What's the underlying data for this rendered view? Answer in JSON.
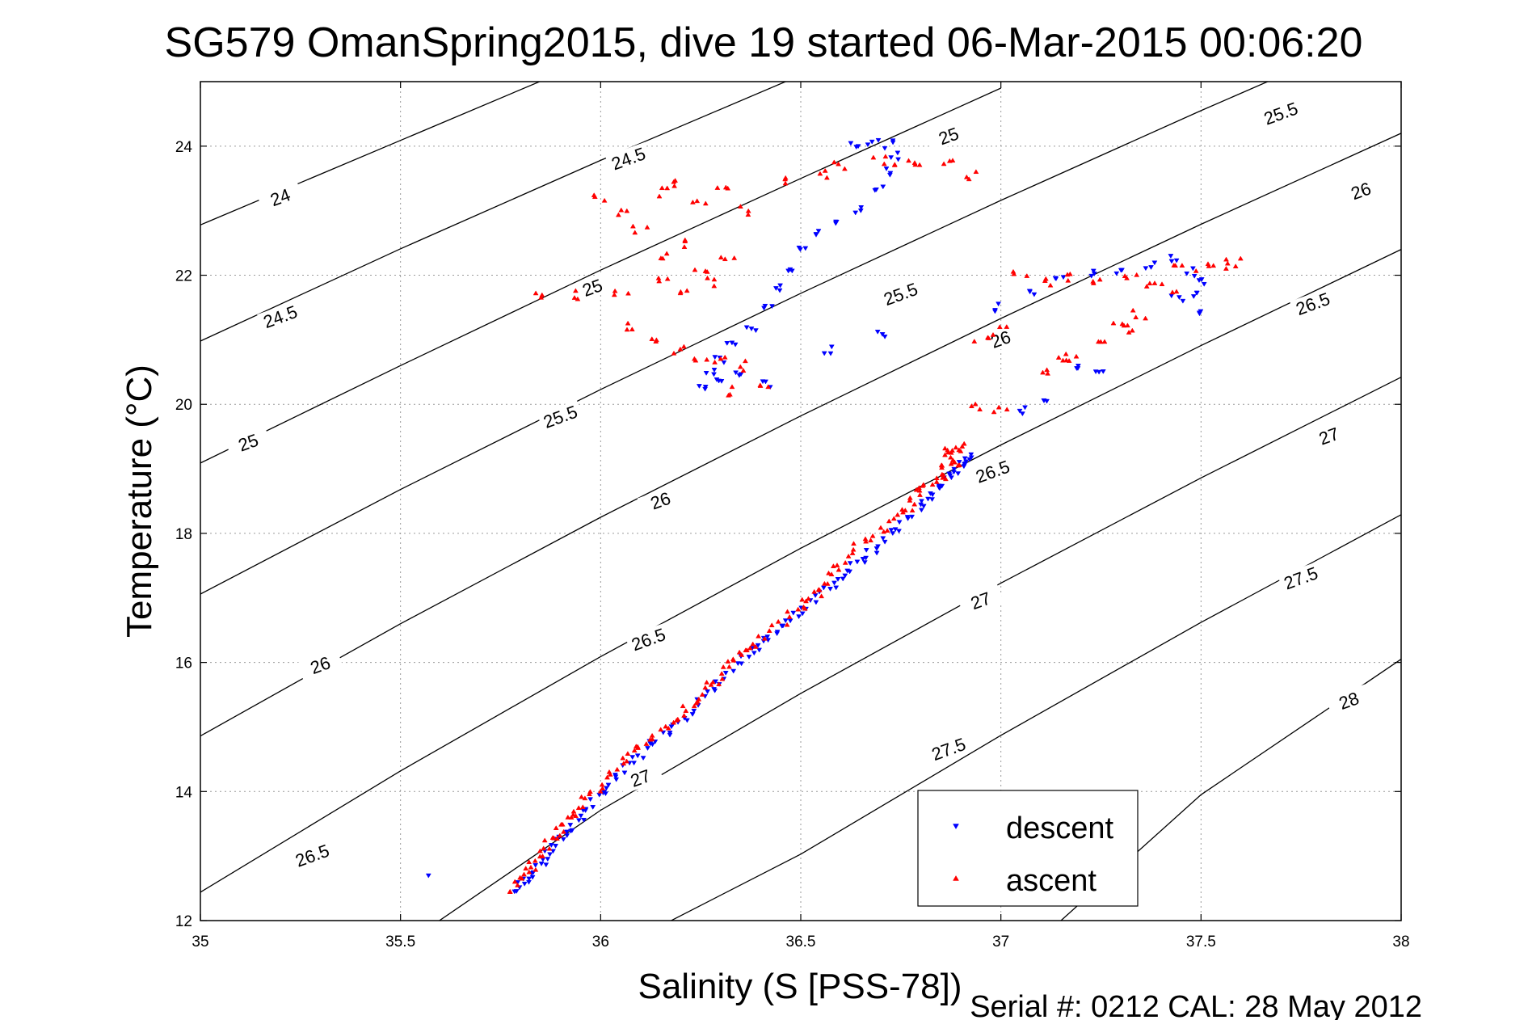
{
  "chart_data": {
    "type": "scatter",
    "title": "SG579 OmanSpring2015, dive 19 started 06-Mar-2015 00:06:20",
    "xlabel": "Salinity (S [PSS-78])",
    "ylabel": "Temperature (°C)",
    "xlim": [
      35,
      38
    ],
    "ylim": [
      12,
      25
    ],
    "x_ticks": [
      "35",
      "35.5",
      "36",
      "36.5",
      "37",
      "37.5",
      "38"
    ],
    "y_ticks": [
      "12",
      "14",
      "16",
      "18",
      "20",
      "22",
      "24"
    ],
    "grid": true,
    "legend_position": "bottom-right",
    "footer": "Serial #: 0212  CAL: 28 May 2012",
    "colors": {
      "descent": "#0000ff",
      "ascent": "#ff0000",
      "contour": "#000000"
    },
    "density_contours": [
      {
        "level": "24",
        "points": [
          [
            35,
            22.78
          ],
          [
            35.5,
            24.09
          ],
          [
            36.0,
            25.4
          ]
        ],
        "label_at": [
          35.2,
          23.3
        ]
      },
      {
        "level": "24.5",
        "points": [
          [
            35,
            20.98
          ],
          [
            35.5,
            22.41
          ],
          [
            36.0,
            23.78
          ],
          [
            36.5,
            25.1
          ]
        ],
        "label_at": [
          35.2,
          21.5
        ]
      },
      {
        "level": "25",
        "points": [
          [
            35,
            19.09
          ],
          [
            35.5,
            20.6
          ],
          [
            36.0,
            22.08
          ],
          [
            36.5,
            23.5
          ],
          [
            37.0,
            24.9
          ]
        ],
        "label_at": [
          35.12,
          19.4
        ]
      },
      {
        "level": "25.5",
        "points": [
          [
            35,
            17.06
          ],
          [
            35.5,
            18.68
          ],
          [
            36.0,
            20.23
          ],
          [
            36.5,
            21.72
          ],
          [
            37.0,
            23.16
          ],
          [
            37.5,
            24.55
          ],
          [
            38.0,
            25.9
          ]
        ],
        "label_at": [
          36.15,
          20.3
        ]
      },
      {
        "level": "26",
        "points": [
          [
            35,
            14.86
          ],
          [
            35.5,
            16.6
          ],
          [
            36.0,
            18.25
          ],
          [
            36.5,
            19.82
          ],
          [
            37.0,
            21.33
          ],
          [
            37.5,
            22.79
          ],
          [
            38.0,
            24.2
          ]
        ],
        "label_at": [
          36.5,
          19.4
        ]
      },
      {
        "level": "26.5",
        "points": [
          [
            35,
            12.44
          ],
          [
            35.5,
            14.32
          ],
          [
            36.0,
            16.09
          ],
          [
            36.5,
            17.77
          ],
          [
            37.0,
            19.37
          ],
          [
            37.5,
            20.91
          ],
          [
            38.0,
            22.4
          ]
        ],
        "label_at": [
          35.3,
          12.88
        ]
      },
      {
        "level": "27",
        "points": [
          [
            35.55,
            11.8
          ],
          [
            36.0,
            13.71
          ],
          [
            36.5,
            15.52
          ],
          [
            37.0,
            17.23
          ],
          [
            37.5,
            18.86
          ],
          [
            38.0,
            20.42
          ]
        ],
        "label_at": [
          36.12,
          14.15
        ]
      },
      {
        "level": "27.5",
        "points": [
          [
            36.17,
            11.98
          ],
          [
            36.5,
            13.03
          ],
          [
            37.0,
            14.87
          ],
          [
            37.5,
            16.62
          ],
          [
            38.0,
            18.29
          ]
        ],
        "label_at": [
          36.9,
          14.7
        ]
      },
      {
        "level": "28",
        "points": [
          [
            37.15,
            12.0
          ],
          [
            37.5,
            13.95
          ],
          [
            38.0,
            16.05
          ]
        ],
        "label_at": [
          37.45,
          14.2
        ]
      }
    ],
    "contour_labels": [
      {
        "text": "24",
        "at": [
          35.2,
          23.2
        ],
        "angle": -20
      },
      {
        "text": "24.5",
        "at": [
          35.2,
          21.35
        ],
        "angle": -20
      },
      {
        "text": "25",
        "at": [
          35.12,
          19.4
        ],
        "angle": -20
      },
      {
        "text": "24.5",
        "at": [
          36.07,
          23.8
        ],
        "angle": -20
      },
      {
        "text": "25",
        "at": [
          35.98,
          21.8
        ],
        "angle": -20
      },
      {
        "text": "25.5",
        "at": [
          35.9,
          19.8
        ],
        "angle": -20
      },
      {
        "text": "25",
        "at": [
          36.87,
          24.15
        ],
        "angle": -20
      },
      {
        "text": "25.5",
        "at": [
          36.75,
          21.7
        ],
        "angle": -20
      },
      {
        "text": "26",
        "at": [
          36.15,
          18.5
        ],
        "angle": -20
      },
      {
        "text": "26",
        "at": [
          35.3,
          15.95
        ],
        "angle": -20
      },
      {
        "text": "26.5",
        "at": [
          36.12,
          16.35
        ],
        "angle": -20
      },
      {
        "text": "26.5",
        "at": [
          35.28,
          13.0
        ],
        "angle": -20
      },
      {
        "text": "27",
        "at": [
          36.1,
          14.2
        ],
        "angle": -20
      },
      {
        "text": "26",
        "at": [
          37.0,
          21.0
        ],
        "angle": -20
      },
      {
        "text": "26.5",
        "at": [
          36.98,
          18.95
        ],
        "angle": -20
      },
      {
        "text": "27",
        "at": [
          36.95,
          16.95
        ],
        "angle": -20
      },
      {
        "text": "27.5",
        "at": [
          36.87,
          14.65
        ],
        "angle": -20
      },
      {
        "text": "25.5",
        "at": [
          37.7,
          24.5
        ],
        "angle": -20
      },
      {
        "text": "26",
        "at": [
          37.9,
          23.3
        ],
        "angle": -20
      },
      {
        "text": "26.5",
        "at": [
          37.78,
          21.55
        ],
        "angle": -20
      },
      {
        "text": "27",
        "at": [
          37.82,
          19.5
        ],
        "angle": -20
      },
      {
        "text": "27.5",
        "at": [
          37.75,
          17.3
        ],
        "angle": -20
      },
      {
        "text": "28",
        "at": [
          37.87,
          15.4
        ],
        "angle": -20
      }
    ],
    "series": [
      {
        "name": "descent",
        "marker": "triangle-down",
        "color": "#0000ff",
        "path": [
          [
            35.79,
            12.45
          ],
          [
            35.83,
            12.75
          ],
          [
            35.88,
            13.1
          ],
          [
            35.93,
            13.45
          ],
          [
            35.98,
            13.85
          ],
          [
            36.05,
            14.25
          ],
          [
            36.12,
            14.7
          ],
          [
            36.2,
            15.1
          ],
          [
            36.28,
            15.55
          ],
          [
            36.36,
            16.05
          ],
          [
            36.42,
            16.4
          ],
          [
            36.5,
            16.8
          ],
          [
            36.58,
            17.2
          ],
          [
            36.65,
            17.6
          ],
          [
            36.72,
            17.95
          ],
          [
            36.8,
            18.4
          ],
          [
            36.85,
            18.75
          ],
          [
            36.9,
            19.05
          ],
          [
            36.93,
            19.25
          ]
        ],
        "clusters": [
          {
            "points": [
              [
                36.64,
                24.05
              ],
              [
                36.68,
                24.05
              ],
              [
                36.72,
                24.03
              ],
              [
                36.74,
                23.85
              ],
              [
                36.72,
                23.6
              ],
              [
                36.7,
                23.35
              ],
              [
                36.65,
                23.0
              ],
              [
                36.6,
                22.85
              ],
              [
                36.55,
                22.65
              ],
              [
                36.5,
                22.4
              ],
              [
                36.47,
                22.1
              ],
              [
                36.45,
                21.8
              ],
              [
                36.42,
                21.5
              ],
              [
                36.38,
                21.2
              ],
              [
                36.33,
                20.95
              ],
              [
                36.3,
                20.7
              ],
              [
                36.27,
                20.5
              ],
              [
                36.25,
                20.25
              ],
              [
                36.3,
                20.35
              ],
              [
                36.35,
                20.5
              ],
              [
                36.42,
                20.3
              ],
              [
                36.7,
                21.1
              ],
              [
                36.57,
                20.85
              ]
            ],
            "spread": 0.015
          },
          {
            "points": [
              [
                37.0,
                21.5
              ],
              [
                37.08,
                21.75
              ],
              [
                37.15,
                21.95
              ],
              [
                37.22,
                22.05
              ],
              [
                37.3,
                22.05
              ],
              [
                37.37,
                22.15
              ],
              [
                37.43,
                22.25
              ],
              [
                37.47,
                22.05
              ],
              [
                37.5,
                21.9
              ],
              [
                37.48,
                21.7
              ],
              [
                37.44,
                21.65
              ],
              [
                37.5,
                21.45
              ],
              [
                37.2,
                20.6
              ],
              [
                37.25,
                20.55
              ],
              [
                37.12,
                20.05
              ],
              [
                37.05,
                19.9
              ]
            ],
            "spread": 0.015
          },
          {
            "points": [
              [
                35.57,
                12.7
              ]
            ],
            "spread": 0.0
          }
        ]
      },
      {
        "name": "ascent",
        "marker": "triangle-up",
        "color": "#ff0000",
        "path": [
          [
            35.78,
            12.45
          ],
          [
            35.82,
            12.8
          ],
          [
            35.87,
            13.2
          ],
          [
            35.92,
            13.55
          ],
          [
            35.97,
            13.95
          ],
          [
            36.05,
            14.4
          ],
          [
            36.12,
            14.8
          ],
          [
            36.2,
            15.2
          ],
          [
            36.27,
            15.6
          ],
          [
            36.33,
            16.05
          ],
          [
            36.4,
            16.35
          ],
          [
            36.5,
            16.85
          ],
          [
            36.56,
            17.2
          ],
          [
            36.62,
            17.7
          ],
          [
            36.72,
            18.1
          ],
          [
            36.78,
            18.5
          ],
          [
            36.83,
            18.85
          ],
          [
            36.88,
            19.2
          ],
          [
            36.9,
            19.35
          ]
        ],
        "clusters": [
          {
            "points": [
              [
                36.0,
                23.2
              ],
              [
                36.05,
                23.0
              ],
              [
                36.15,
                23.3
              ],
              [
                36.2,
                23.45
              ],
              [
                36.3,
                23.4
              ],
              [
                36.25,
                23.1
              ],
              [
                36.35,
                23.0
              ],
              [
                36.1,
                22.7
              ],
              [
                36.15,
                22.3
              ],
              [
                36.2,
                22.5
              ],
              [
                36.25,
                22.1
              ],
              [
                36.15,
                21.9
              ],
              [
                36.2,
                21.8
              ],
              [
                36.28,
                21.9
              ],
              [
                36.32,
                22.3
              ],
              [
                36.05,
                21.75
              ],
              [
                35.95,
                21.7
              ],
              [
                35.85,
                21.65
              ],
              [
                36.06,
                21.2
              ],
              [
                36.12,
                21.0
              ],
              [
                36.2,
                20.85
              ],
              [
                36.25,
                20.75
              ],
              [
                36.3,
                20.7
              ],
              [
                36.35,
                20.6
              ],
              [
                36.32,
                20.2
              ],
              [
                36.4,
                20.25
              ],
              [
                36.45,
                23.5
              ],
              [
                36.55,
                23.55
              ],
              [
                36.6,
                23.7
              ],
              [
                36.7,
                23.8
              ],
              [
                36.75,
                23.75
              ],
              [
                36.78,
                23.7
              ],
              [
                36.87,
                23.7
              ],
              [
                36.93,
                23.55
              ]
            ],
            "spread": 0.02
          },
          {
            "points": [
              [
                37.05,
                22.0
              ],
              [
                37.12,
                21.9
              ],
              [
                37.18,
                21.95
              ],
              [
                37.25,
                21.95
              ],
              [
                37.32,
                22.0
              ],
              [
                37.38,
                21.85
              ],
              [
                37.42,
                21.8
              ],
              [
                37.45,
                22.2
              ],
              [
                37.5,
                22.1
              ],
              [
                37.55,
                22.15
              ],
              [
                37.58,
                22.2
              ],
              [
                37.35,
                21.4
              ],
              [
                37.3,
                21.3
              ],
              [
                37.32,
                21.15
              ],
              [
                37.25,
                21.0
              ],
              [
                37.18,
                20.75
              ],
              [
                37.15,
                20.65
              ],
              [
                37.12,
                20.5
              ],
              [
                37.0,
                21.15
              ],
              [
                36.95,
                21.05
              ],
              [
                36.93,
                20.0
              ],
              [
                37.0,
                19.95
              ],
              [
                36.87,
                19.25
              ],
              [
                36.9,
                19.1
              ],
              [
                36.85,
                18.9
              ]
            ],
            "spread": 0.02
          }
        ]
      }
    ]
  }
}
